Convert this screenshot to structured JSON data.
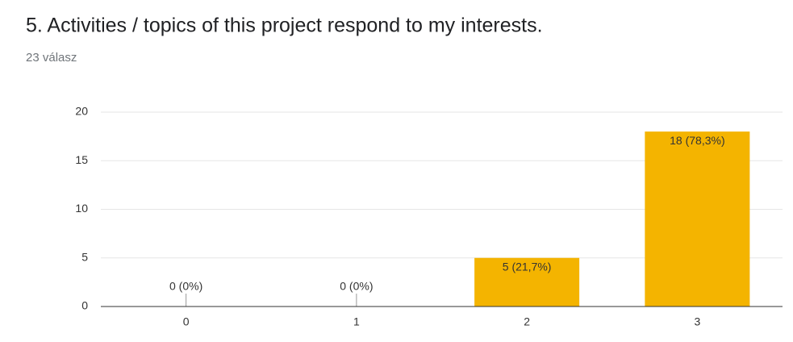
{
  "chart_data": {
    "type": "bar",
    "title": "5. Activities / topics of this project respond to my interests.",
    "subtitle": "23 válasz",
    "categories": [
      "0",
      "1",
      "2",
      "3"
    ],
    "values": [
      0,
      0,
      5,
      18
    ],
    "value_labels": [
      "0 (0%)",
      "0 (0%)",
      "5 (21,7%)",
      "18 (78,3%)"
    ],
    "color": "#f4b400",
    "ylim": [
      0,
      20
    ],
    "yticks": [
      0,
      5,
      10,
      15,
      20
    ],
    "grid": true
  }
}
